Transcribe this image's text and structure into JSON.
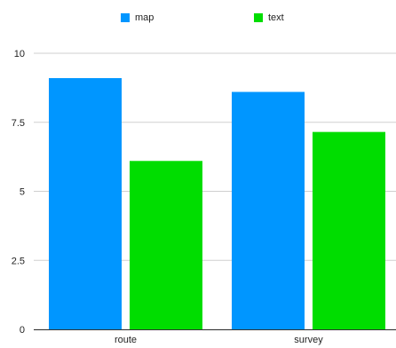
{
  "chart_data": {
    "type": "bar",
    "categories": [
      "route",
      "survey"
    ],
    "series": [
      {
        "name": "map",
        "values": [
          9.1,
          8.6
        ],
        "color": "#0096ff"
      },
      {
        "name": "text",
        "values": [
          6.1,
          7.15
        ],
        "color": "#00dd00"
      }
    ],
    "ylim": [
      0,
      10
    ],
    "yticks": [
      0,
      2.5,
      5,
      7.5,
      10
    ],
    "ytick_labels": [
      "0",
      "2.5",
      "5",
      "7.5",
      "10"
    ],
    "grid": true,
    "legend_position": "top-center",
    "xlabel": "",
    "ylabel": "",
    "title": ""
  }
}
